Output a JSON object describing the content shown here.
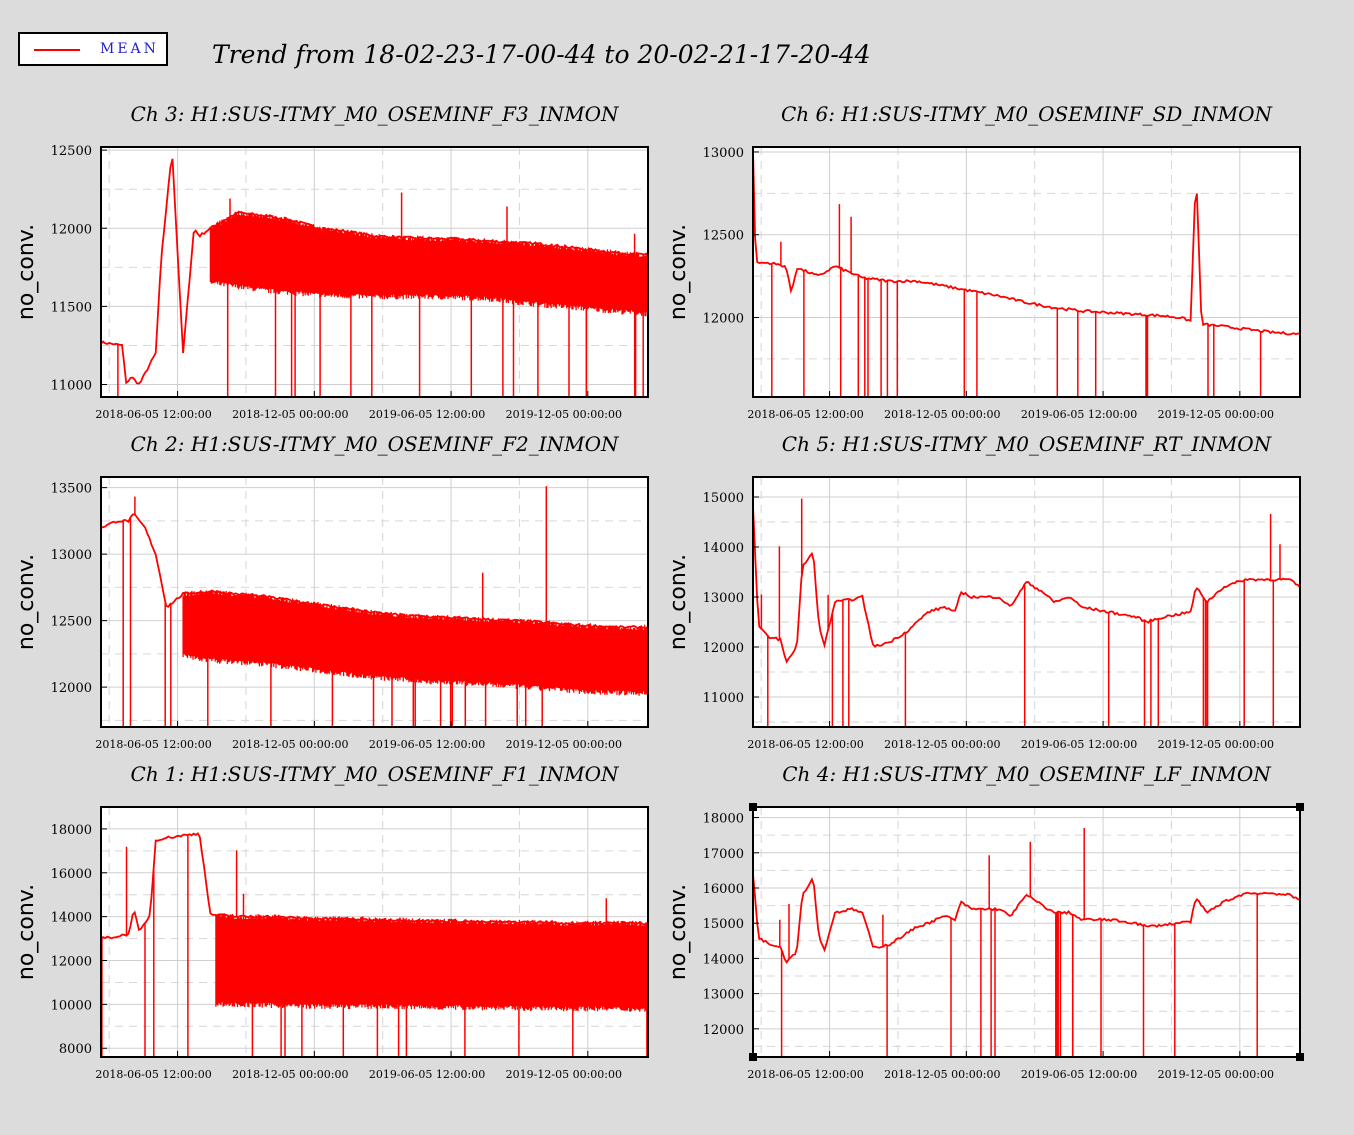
{
  "legend": {
    "label": "MEAN",
    "color": "#ff0000"
  },
  "title": "Trend from 18-02-23-17-00-44 to 20-02-21-17-20-44",
  "chart_data": [
    {
      "type": "line",
      "title": "Ch 3: H1:SUS-ITMY_M0_OSEMINF_F3_INMON",
      "ylabel": "no_conv.",
      "ylim": [
        10920,
        12520
      ],
      "yticks": [
        11000,
        11500,
        12000,
        12500
      ],
      "xticks": [
        "2018-06-05 12:00:00",
        "2018-12-05 00:00:00",
        "2019-06-05 12:00:00",
        "2019-12-05 00:00:00"
      ],
      "series": [
        {
          "color": "#ff0000",
          "values": [
            [
              0.0,
              11270
            ],
            [
              0.02,
              11260
            ],
            [
              0.04,
              11250
            ],
            [
              0.045,
              11000
            ],
            [
              0.055,
              11050
            ],
            [
              0.07,
              11000
            ],
            [
              0.1,
              11200
            ],
            [
              0.11,
              11800
            ],
            [
              0.13,
              12500
            ],
            [
              0.15,
              11200
            ],
            [
              0.17,
              12000
            ],
            [
              0.18,
              11950
            ],
            [
              0.2,
              12000
            ],
            [
              0.25,
              12100
            ],
            [
              0.3,
              12080
            ],
            [
              0.35,
              12050
            ],
            [
              0.4,
              12000
            ],
            [
              0.45,
              11980
            ],
            [
              0.5,
              11950
            ],
            [
              0.55,
              11940
            ],
            [
              0.6,
              11935
            ],
            [
              0.65,
              11930
            ],
            [
              0.7,
              11920
            ],
            [
              0.75,
              11910
            ],
            [
              0.8,
              11900
            ],
            [
              0.85,
              11880
            ],
            [
              0.9,
              11860
            ],
            [
              0.95,
              11840
            ],
            [
              1.0,
              11830
            ]
          ]
        }
      ],
      "band_low": [
        [
          0.2,
          11650
        ],
        [
          0.3,
          11600
        ],
        [
          0.4,
          11570
        ],
        [
          0.5,
          11560
        ],
        [
          0.6,
          11560
        ],
        [
          0.7,
          11550
        ],
        [
          0.8,
          11510
        ],
        [
          0.9,
          11480
        ],
        [
          1.0,
          11450
        ]
      ]
    },
    {
      "type": "line",
      "title": "Ch 6: H1:SUS-ITMY_M0_OSEMINF_SD_INMON",
      "ylabel": "no_conv.",
      "ylim": [
        11520,
        13030
      ],
      "yticks": [
        12000,
        12500,
        13000
      ],
      "xticks": [
        "2018-06-05 12:00:00",
        "2018-12-05 00:00:00",
        "2019-06-05 12:00:00",
        "2019-12-05 00:00:00"
      ],
      "series": [
        {
          "color": "#ff0000",
          "values": [
            [
              0.0,
              13000
            ],
            [
              0.005,
              12330
            ],
            [
              0.03,
              12330
            ],
            [
              0.06,
              12310
            ],
            [
              0.07,
              12150
            ],
            [
              0.08,
              12300
            ],
            [
              0.12,
              12250
            ],
            [
              0.15,
              12310
            ],
            [
              0.2,
              12240
            ],
            [
              0.25,
              12220
            ],
            [
              0.3,
              12220
            ],
            [
              0.35,
              12190
            ],
            [
              0.4,
              12160
            ],
            [
              0.45,
              12130
            ],
            [
              0.5,
              12090
            ],
            [
              0.55,
              12060
            ],
            [
              0.6,
              12040
            ],
            [
              0.65,
              12030
            ],
            [
              0.7,
              12020
            ],
            [
              0.75,
              12010
            ],
            [
              0.78,
              12000
            ],
            [
              0.8,
              11980
            ],
            [
              0.81,
              12900
            ],
            [
              0.82,
              11960
            ],
            [
              0.85,
              11950
            ],
            [
              0.9,
              11930
            ],
            [
              0.95,
              11910
            ],
            [
              1.0,
              11900
            ]
          ]
        }
      ]
    },
    {
      "type": "line",
      "title": "Ch 2: H1:SUS-ITMY_M0_OSEMINF_F2_INMON",
      "ylabel": "no_conv.",
      "ylim": [
        11700,
        13580
      ],
      "yticks": [
        12000,
        12500,
        13000,
        13500
      ],
      "xticks": [
        "2018-06-05 12:00:00",
        "2018-12-05 00:00:00",
        "2019-06-05 12:00:00",
        "2019-12-05 00:00:00"
      ],
      "series": [
        {
          "color": "#ff0000",
          "values": [
            [
              0.0,
              13200
            ],
            [
              0.03,
              13250
            ],
            [
              0.05,
              13250
            ],
            [
              0.06,
              13300
            ],
            [
              0.08,
              13200
            ],
            [
              0.1,
              13000
            ],
            [
              0.12,
              12600
            ],
            [
              0.15,
              12700
            ],
            [
              0.2,
              12720
            ],
            [
              0.25,
              12700
            ],
            [
              0.3,
              12680
            ],
            [
              0.35,
              12650
            ],
            [
              0.4,
              12620
            ],
            [
              0.45,
              12590
            ],
            [
              0.5,
              12560
            ],
            [
              0.55,
              12540
            ],
            [
              0.6,
              12530
            ],
            [
              0.65,
              12520
            ],
            [
              0.7,
              12510
            ],
            [
              0.75,
              12500
            ],
            [
              0.8,
              12490
            ],
            [
              0.85,
              12470
            ],
            [
              0.9,
              12460
            ],
            [
              0.95,
              12450
            ],
            [
              1.0,
              12450
            ]
          ]
        }
      ],
      "band_low": [
        [
          0.15,
          12230
        ],
        [
          0.2,
          12200
        ],
        [
          0.3,
          12170
        ],
        [
          0.4,
          12120
        ],
        [
          0.5,
          12070
        ],
        [
          0.6,
          12040
        ],
        [
          0.7,
          12020
        ],
        [
          0.8,
          11990
        ],
        [
          0.9,
          11960
        ],
        [
          1.0,
          11950
        ]
      ]
    },
    {
      "type": "line",
      "title": "Ch 5: H1:SUS-ITMY_M0_OSEMINF_RT_INMON",
      "ylabel": "no_conv.",
      "ylim": [
        10400,
        15400
      ],
      "yticks": [
        11000,
        12000,
        13000,
        14000,
        15000
      ],
      "xticks": [
        "2018-06-05 12:00:00",
        "2018-12-05 00:00:00",
        "2019-06-05 12:00:00",
        "2019-12-05 00:00:00"
      ],
      "series": [
        {
          "color": "#ff0000",
          "values": [
            [
              0.0,
              14800
            ],
            [
              0.01,
              12400
            ],
            [
              0.03,
              12200
            ],
            [
              0.05,
              12150
            ],
            [
              0.06,
              11700
            ],
            [
              0.08,
              12000
            ],
            [
              0.09,
              13600
            ],
            [
              0.11,
              13900
            ],
            [
              0.12,
              12500
            ],
            [
              0.13,
              12000
            ],
            [
              0.15,
              12900
            ],
            [
              0.18,
              12950
            ],
            [
              0.2,
              13000
            ],
            [
              0.22,
              12000
            ],
            [
              0.25,
              12100
            ],
            [
              0.28,
              12300
            ],
            [
              0.3,
              12500
            ],
            [
              0.32,
              12700
            ],
            [
              0.35,
              12800
            ],
            [
              0.37,
              12700
            ],
            [
              0.38,
              13100
            ],
            [
              0.4,
              13000
            ],
            [
              0.45,
              13000
            ],
            [
              0.47,
              12800
            ],
            [
              0.5,
              13300
            ],
            [
              0.53,
              13100
            ],
            [
              0.55,
              12900
            ],
            [
              0.58,
              13000
            ],
            [
              0.6,
              12800
            ],
            [
              0.65,
              12700
            ],
            [
              0.7,
              12600
            ],
            [
              0.72,
              12500
            ],
            [
              0.75,
              12600
            ],
            [
              0.8,
              12700
            ],
            [
              0.81,
              13200
            ],
            [
              0.83,
              12900
            ],
            [
              0.86,
              13200
            ],
            [
              0.9,
              13350
            ],
            [
              0.95,
              13350
            ],
            [
              0.98,
              13350
            ],
            [
              1.0,
              13200
            ]
          ]
        }
      ]
    },
    {
      "type": "line",
      "title": "Ch 1: H1:SUS-ITMY_M0_OSEMINF_F1_INMON",
      "ylabel": "no_conv.",
      "ylim": [
        7600,
        19000
      ],
      "yticks": [
        8000,
        10000,
        12000,
        14000,
        16000,
        18000
      ],
      "xticks": [
        "2018-06-05 12:00:00",
        "2018-12-05 00:00:00",
        "2019-06-05 12:00:00",
        "2019-12-05 00:00:00"
      ],
      "series": [
        {
          "color": "#ff0000",
          "values": [
            [
              0.0,
              13000
            ],
            [
              0.03,
              13100
            ],
            [
              0.05,
              13200
            ],
            [
              0.06,
              14300
            ],
            [
              0.07,
              13300
            ],
            [
              0.09,
              14100
            ],
            [
              0.1,
              17500
            ],
            [
              0.12,
              17600
            ],
            [
              0.15,
              17700
            ],
            [
              0.18,
              17800
            ],
            [
              0.2,
              14100
            ],
            [
              0.25,
              14000
            ],
            [
              0.3,
              14000
            ],
            [
              0.35,
              13950
            ],
            [
              0.4,
              13900
            ],
            [
              0.45,
              13900
            ],
            [
              0.5,
              13850
            ],
            [
              0.55,
              13850
            ],
            [
              0.6,
              13800
            ],
            [
              0.65,
              13800
            ],
            [
              0.7,
              13750
            ],
            [
              0.75,
              13750
            ],
            [
              0.8,
              13750
            ],
            [
              0.85,
              13700
            ],
            [
              0.9,
              13700
            ],
            [
              0.95,
              13700
            ],
            [
              1.0,
              13700
            ]
          ]
        }
      ],
      "band_low": [
        [
          0.21,
          10000
        ],
        [
          0.3,
          9950
        ],
        [
          0.4,
          9900
        ],
        [
          0.5,
          9900
        ],
        [
          0.6,
          9850
        ],
        [
          0.7,
          9850
        ],
        [
          0.8,
          9800
        ],
        [
          0.9,
          9800
        ],
        [
          1.0,
          9750
        ]
      ]
    },
    {
      "type": "line",
      "title": "Ch 4: H1:SUS-ITMY_M0_OSEMINF_LF_INMON",
      "ylabel": "no_conv.",
      "ylim": [
        11200,
        18300
      ],
      "yticks": [
        12000,
        13000,
        14000,
        15000,
        16000,
        17000,
        18000
      ],
      "xticks": [
        "2018-06-05 12:00:00",
        "2018-12-05 00:00:00",
        "2019-06-05 12:00:00",
        "2019-12-05 00:00:00"
      ],
      "series": [
        {
          "color": "#ff0000",
          "values": [
            [
              0.0,
              16400
            ],
            [
              0.01,
              14600
            ],
            [
              0.03,
              14400
            ],
            [
              0.05,
              14350
            ],
            [
              0.06,
              13900
            ],
            [
              0.08,
              14200
            ],
            [
              0.09,
              15800
            ],
            [
              0.11,
              16300
            ],
            [
              0.12,
              14700
            ],
            [
              0.13,
              14200
            ],
            [
              0.15,
              15300
            ],
            [
              0.18,
              15400
            ],
            [
              0.2,
              15300
            ],
            [
              0.22,
              14300
            ],
            [
              0.25,
              14400
            ],
            [
              0.28,
              14700
            ],
            [
              0.3,
              14900
            ],
            [
              0.32,
              15000
            ],
            [
              0.35,
              15200
            ],
            [
              0.37,
              15100
            ],
            [
              0.38,
              15600
            ],
            [
              0.4,
              15400
            ],
            [
              0.45,
              15400
            ],
            [
              0.47,
              15200
            ],
            [
              0.5,
              15800
            ],
            [
              0.53,
              15500
            ],
            [
              0.55,
              15300
            ],
            [
              0.58,
              15300
            ],
            [
              0.6,
              15100
            ],
            [
              0.65,
              15100
            ],
            [
              0.7,
              15000
            ],
            [
              0.72,
              14900
            ],
            [
              0.75,
              14950
            ],
            [
              0.8,
              15050
            ],
            [
              0.81,
              15700
            ],
            [
              0.83,
              15300
            ],
            [
              0.86,
              15600
            ],
            [
              0.9,
              15850
            ],
            [
              0.95,
              15850
            ],
            [
              0.98,
              15800
            ],
            [
              1.0,
              15650
            ]
          ]
        }
      ]
    }
  ]
}
